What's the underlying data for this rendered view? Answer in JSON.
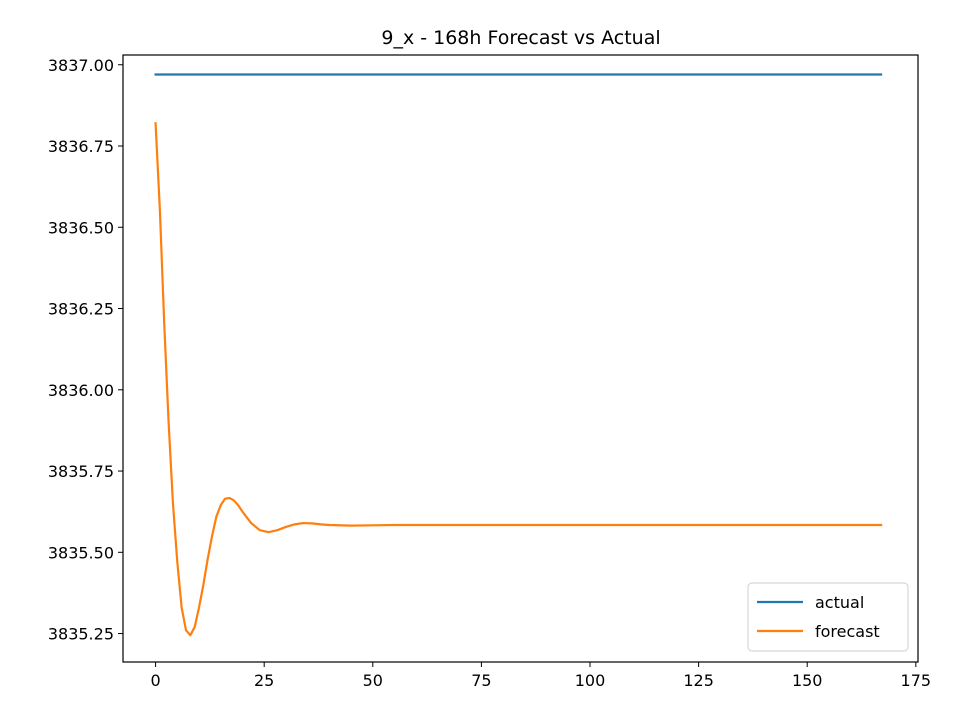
{
  "chart_data": {
    "type": "line",
    "title": "9_x - 168h Forecast vs Actual",
    "xlabel": "",
    "ylabel": "",
    "xlim": [
      -7.5,
      175.5
    ],
    "ylim": [
      3835.1625,
      3837.03
    ],
    "x_ticks": [
      0,
      25,
      50,
      75,
      100,
      125,
      150,
      175
    ],
    "x_tick_labels": [
      "0",
      "25",
      "50",
      "75",
      "100",
      "125",
      "150",
      "175"
    ],
    "y_ticks": [
      3835.25,
      3835.5,
      3835.75,
      3836.0,
      3836.25,
      3836.5,
      3836.75,
      3837.0
    ],
    "y_tick_labels": [
      "3835.25",
      "3835.50",
      "3835.75",
      "3836.00",
      "3836.25",
      "3836.50",
      "3836.75",
      "3837.00"
    ],
    "legend_position": "lower-right",
    "grid": false,
    "series": [
      {
        "name": "actual",
        "color": "#1f77b4",
        "x": [
          0,
          167
        ],
        "y": [
          3836.97,
          3836.97
        ]
      },
      {
        "name": "forecast",
        "color": "#ff7f0e",
        "x": [
          0,
          1,
          2,
          3,
          4,
          5,
          6,
          7,
          8,
          9,
          10,
          11,
          12,
          13,
          14,
          15,
          16,
          17,
          18,
          19,
          20,
          22,
          24,
          26,
          28,
          30,
          32,
          34,
          36,
          38,
          40,
          45,
          50,
          55,
          60,
          70,
          80,
          100,
          120,
          140,
          160,
          167
        ],
        "y": [
          3836.82,
          3836.55,
          3836.2,
          3835.9,
          3835.65,
          3835.47,
          3835.33,
          3835.26,
          3835.245,
          3835.27,
          3835.33,
          3835.4,
          3835.48,
          3835.55,
          3835.61,
          3835.645,
          3835.665,
          3835.667,
          3835.66,
          3835.645,
          3835.625,
          3835.59,
          3835.568,
          3835.562,
          3835.568,
          3835.578,
          3835.586,
          3835.59,
          3835.589,
          3835.586,
          3835.584,
          3835.582,
          3835.583,
          3835.584,
          3835.584,
          3835.584,
          3835.584,
          3835.584,
          3835.584,
          3835.584,
          3835.584,
          3835.584
        ]
      }
    ]
  }
}
